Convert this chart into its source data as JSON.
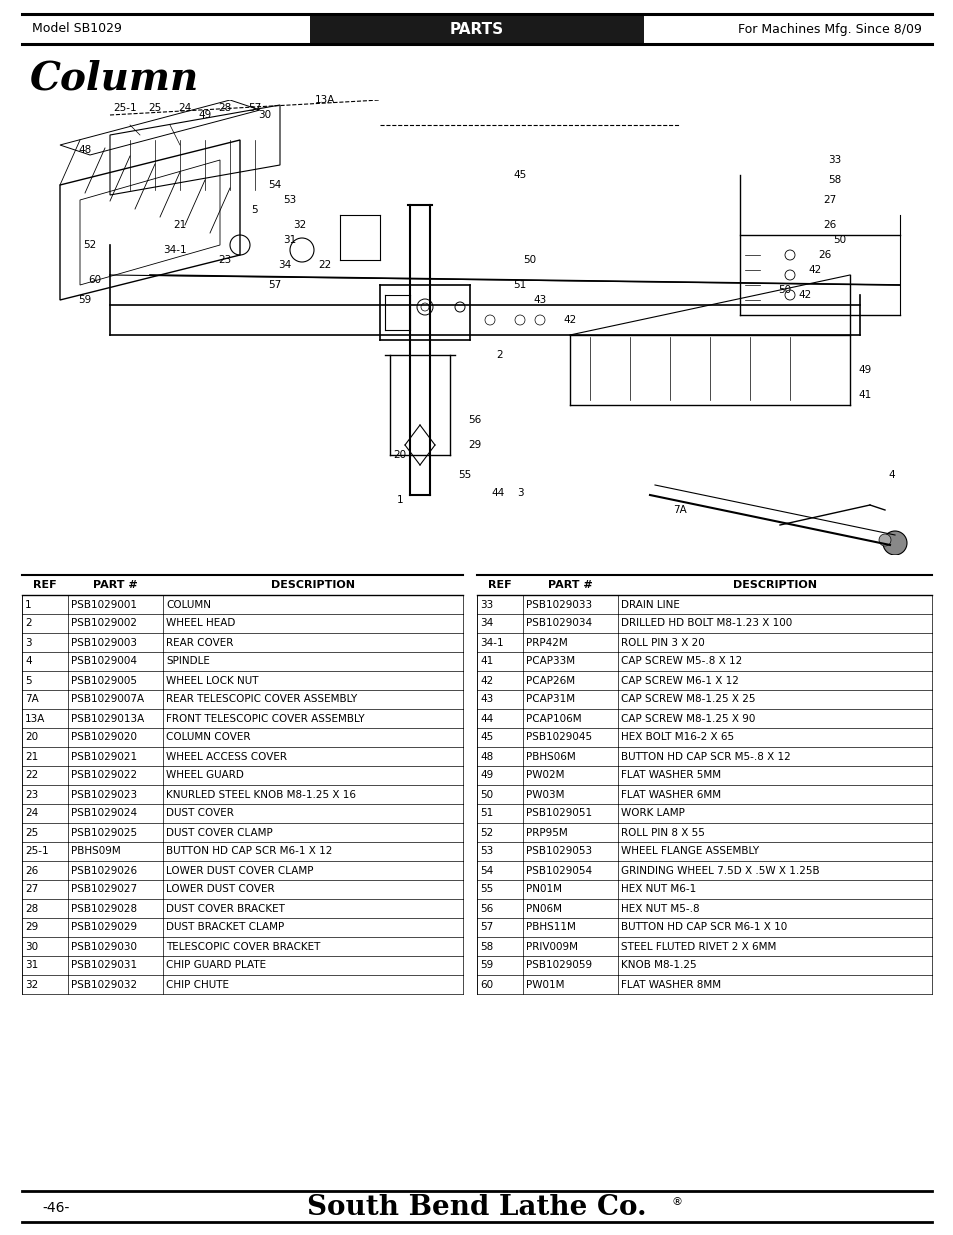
{
  "header_left": "Model SB1029",
  "header_center": "PARTS",
  "header_right": "For Machines Mfg. Since 8/09",
  "title": "Column",
  "page_number": "-46-",
  "footer": "South Bend Lathe Co.",
  "table_headers": [
    "REF",
    "PART #",
    "DESCRIPTION"
  ],
  "left_table": [
    [
      "1",
      "PSB1029001",
      "COLUMN"
    ],
    [
      "2",
      "PSB1029002",
      "WHEEL HEAD"
    ],
    [
      "3",
      "PSB1029003",
      "REAR COVER"
    ],
    [
      "4",
      "PSB1029004",
      "SPINDLE"
    ],
    [
      "5",
      "PSB1029005",
      "WHEEL LOCK NUT"
    ],
    [
      "7A",
      "PSB1029007A",
      "REAR TELESCOPIC COVER ASSEMBLY"
    ],
    [
      "13A",
      "PSB1029013A",
      "FRONT TELESCOPIC COVER ASSEMBLY"
    ],
    [
      "20",
      "PSB1029020",
      "COLUMN COVER"
    ],
    [
      "21",
      "PSB1029021",
      "WHEEL ACCESS COVER"
    ],
    [
      "22",
      "PSB1029022",
      "WHEEL GUARD"
    ],
    [
      "23",
      "PSB1029023",
      "KNURLED STEEL KNOB M8-1.25 X 16"
    ],
    [
      "24",
      "PSB1029024",
      "DUST COVER"
    ],
    [
      "25",
      "PSB1029025",
      "DUST COVER CLAMP"
    ],
    [
      "25-1",
      "PBHS09M",
      "BUTTON HD CAP SCR M6-1 X 12"
    ],
    [
      "26",
      "PSB1029026",
      "LOWER DUST COVER CLAMP"
    ],
    [
      "27",
      "PSB1029027",
      "LOWER DUST COVER"
    ],
    [
      "28",
      "PSB1029028",
      "DUST COVER BRACKET"
    ],
    [
      "29",
      "PSB1029029",
      "DUST BRACKET CLAMP"
    ],
    [
      "30",
      "PSB1029030",
      "TELESCOPIC COVER BRACKET"
    ],
    [
      "31",
      "PSB1029031",
      "CHIP GUARD PLATE"
    ],
    [
      "32",
      "PSB1029032",
      "CHIP CHUTE"
    ]
  ],
  "right_table": [
    [
      "33",
      "PSB1029033",
      "DRAIN LINE"
    ],
    [
      "34",
      "PSB1029034",
      "DRILLED HD BOLT M8-1.23 X 100"
    ],
    [
      "34-1",
      "PRP42M",
      "ROLL PIN 3 X 20"
    ],
    [
      "41",
      "PCAP33M",
      "CAP SCREW M5-.8 X 12"
    ],
    [
      "42",
      "PCAP26M",
      "CAP SCREW M6-1 X 12"
    ],
    [
      "43",
      "PCAP31M",
      "CAP SCREW M8-1.25 X 25"
    ],
    [
      "44",
      "PCAP106M",
      "CAP SCREW M8-1.25 X 90"
    ],
    [
      "45",
      "PSB1029045",
      "HEX BOLT M16-2 X 65"
    ],
    [
      "48",
      "PBHS06M",
      "BUTTON HD CAP SCR M5-.8 X 12"
    ],
    [
      "49",
      "PW02M",
      "FLAT WASHER 5MM"
    ],
    [
      "50",
      "PW03M",
      "FLAT WASHER 6MM"
    ],
    [
      "51",
      "PSB1029051",
      "WORK LAMP"
    ],
    [
      "52",
      "PRP95M",
      "ROLL PIN 8 X 55"
    ],
    [
      "53",
      "PSB1029053",
      "WHEEL FLANGE ASSEMBLY"
    ],
    [
      "54",
      "PSB1029054",
      "GRINDING WHEEL 7.5D X .5W X 1.25B"
    ],
    [
      "55",
      "PN01M",
      "HEX NUT M6-1"
    ],
    [
      "56",
      "PN06M",
      "HEX NUT M5-.8"
    ],
    [
      "57",
      "PBHS11M",
      "BUTTON HD CAP SCR M6-1 X 10"
    ],
    [
      "58",
      "PRIV009M",
      "STEEL FLUTED RIVET 2 X 6MM"
    ],
    [
      "59",
      "PSB1029059",
      "KNOB M8-1.25"
    ],
    [
      "60",
      "PW01M",
      "FLAT WASHER 8MM"
    ]
  ],
  "bg_color": "#ffffff",
  "header_bg": "#1a1a1a",
  "header_text_color": "#ffffff",
  "text_color": "#000000"
}
